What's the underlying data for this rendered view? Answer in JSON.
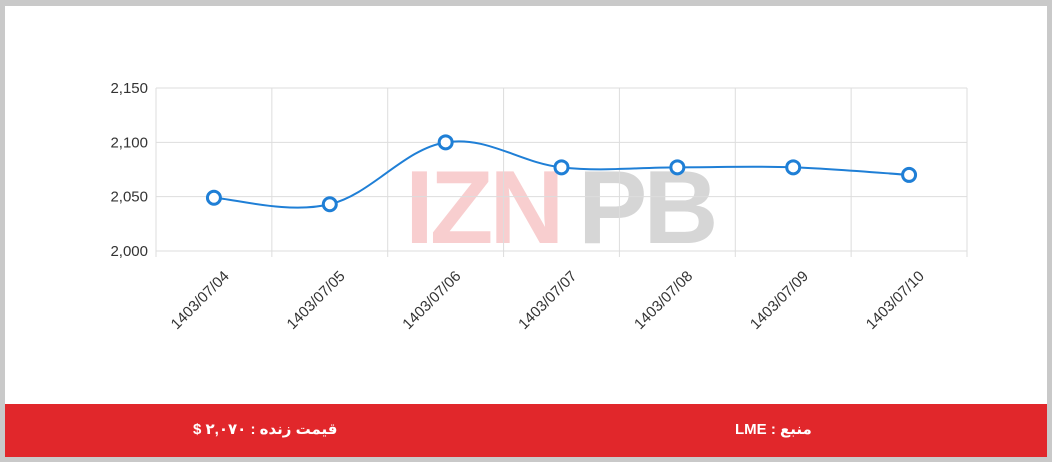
{
  "colors": {
    "line": "#1f7fd6",
    "grid": "#dddddd",
    "footer_bg": "#e1272b",
    "watermark_red": "#e1272b",
    "watermark_gray": "#8c8c8c"
  },
  "watermark": {
    "text": "IZNPB"
  },
  "footer": {
    "source_label": "منبع : LME",
    "price_label": "قیمت زنده : ۲,۰۷۰ $"
  },
  "chart_data": {
    "type": "line",
    "categories": [
      "1403/07/04",
      "1403/07/05",
      "1403/07/06",
      "1403/07/07",
      "1403/07/08",
      "1403/07/09",
      "1403/07/10"
    ],
    "series": [
      {
        "values": [
          2049,
          2043,
          2100,
          2077,
          2077,
          2077,
          2070
        ]
      }
    ],
    "ylim": [
      2000,
      2150
    ],
    "yticks": [
      2000,
      2050,
      2100,
      2150
    ],
    "ytick_labels": [
      "2,000",
      "2,050",
      "2,100",
      "2,150"
    ],
    "grid": true,
    "legend": "none",
    "title": "",
    "xlabel": "",
    "ylabel": ""
  }
}
